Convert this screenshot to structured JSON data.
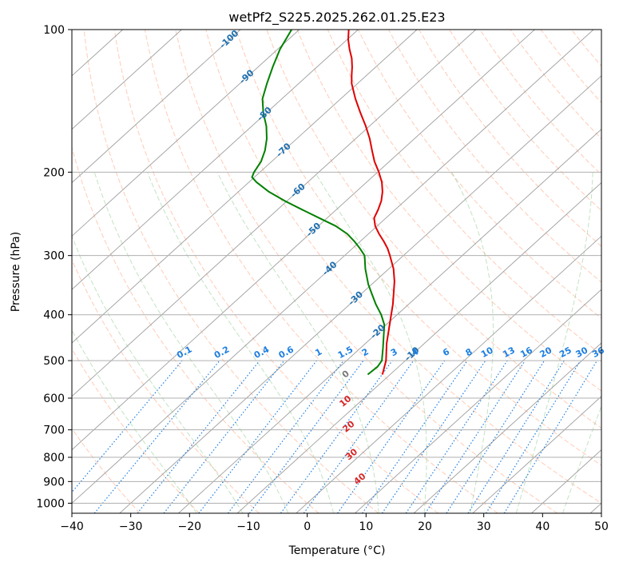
{
  "chart_data": {
    "type": "line",
    "title": "wetPf2_S225.2025.262.01.25.E23",
    "xlabel": "Temperature (°C)",
    "ylabel": "Pressure (hPa)",
    "xlim": [
      -40,
      50
    ],
    "ylim": [
      1050,
      100
    ],
    "x_ticks": [
      -40,
      -30,
      -20,
      -10,
      0,
      10,
      20,
      30,
      40,
      50
    ],
    "x_tick_labels": [
      "−40",
      "−30",
      "−20",
      "−10",
      "0",
      "10",
      "20",
      "30",
      "40",
      "50"
    ],
    "y_ticks": [
      1000,
      900,
      800,
      700,
      600,
      500,
      400,
      300,
      200,
      100
    ],
    "y_tick_labels": [
      "1000",
      "900",
      "800",
      "700",
      "600",
      "500",
      "400",
      "300",
      "200",
      "100"
    ],
    "grid": true,
    "colors": {
      "temperature": "#e00000",
      "dewpoint": "#008000",
      "isotherm": "#9e9e9e",
      "dry_adiabat": "#ffa07a",
      "moist_adiabat": "#8fcc8f",
      "mixing_ratio": "#1e7fe0",
      "isotherm_label": "#1f6fb0",
      "moist_label": "#d62728",
      "zero_label": "#777777",
      "background_arc": "#d2b48c"
    },
    "series": [
      {
        "name": "Temperature",
        "points": [
          {
            "p": 535,
            "t": -11.3
          },
          {
            "p": 500,
            "t": -13.3
          },
          {
            "p": 460,
            "t": -16.4
          },
          {
            "p": 420,
            "t": -19.4
          },
          {
            "p": 380,
            "t": -22.7
          },
          {
            "p": 340,
            "t": -26.7
          },
          {
            "p": 320,
            "t": -29.2
          },
          {
            "p": 300,
            "t": -32.3
          },
          {
            "p": 290,
            "t": -34.0
          },
          {
            "p": 280,
            "t": -36.0
          },
          {
            "p": 270,
            "t": -38.2
          },
          {
            "p": 260,
            "t": -40.3
          },
          {
            "p": 250,
            "t": -42.0
          },
          {
            "p": 240,
            "t": -42.9
          },
          {
            "p": 230,
            "t": -44.0
          },
          {
            "p": 220,
            "t": -45.5
          },
          {
            "p": 210,
            "t": -47.4
          },
          {
            "p": 200,
            "t": -49.8
          },
          {
            "p": 190,
            "t": -52.5
          },
          {
            "p": 180,
            "t": -55.0
          },
          {
            "p": 170,
            "t": -57.6
          },
          {
            "p": 160,
            "t": -60.6
          },
          {
            "p": 150,
            "t": -64.0
          },
          {
            "p": 140,
            "t": -67.5
          },
          {
            "p": 130,
            "t": -71.0
          },
          {
            "p": 125,
            "t": -72.5
          },
          {
            "p": 120,
            "t": -74.0
          },
          {
            "p": 115,
            "t": -75.7
          },
          {
            "p": 110,
            "t": -77.8
          },
          {
            "p": 105,
            "t": -79.8
          },
          {
            "p": 100,
            "t": -81.6
          }
        ]
      },
      {
        "name": "Dewpoint",
        "points": [
          {
            "p": 535,
            "t": -13.8
          },
          {
            "p": 515,
            "t": -13.6
          },
          {
            "p": 500,
            "t": -14.0
          },
          {
            "p": 470,
            "t": -16.2
          },
          {
            "p": 440,
            "t": -18.6
          },
          {
            "p": 420,
            "t": -20.3
          },
          {
            "p": 400,
            "t": -22.7
          },
          {
            "p": 380,
            "t": -25.6
          },
          {
            "p": 360,
            "t": -28.4
          },
          {
            "p": 345,
            "t": -30.6
          },
          {
            "p": 320,
            "t": -34.0
          },
          {
            "p": 300,
            "t": -36.6
          },
          {
            "p": 290,
            "t": -38.7
          },
          {
            "p": 280,
            "t": -41.0
          },
          {
            "p": 270,
            "t": -43.6
          },
          {
            "p": 260,
            "t": -47.0
          },
          {
            "p": 250,
            "t": -51.3
          },
          {
            "p": 240,
            "t": -55.8
          },
          {
            "p": 230,
            "t": -60.4
          },
          {
            "p": 220,
            "t": -64.8
          },
          {
            "p": 210,
            "t": -68.7
          },
          {
            "p": 205,
            "t": -70.4
          },
          {
            "p": 200,
            "t": -71.0
          },
          {
            "p": 190,
            "t": -71.8
          },
          {
            "p": 180,
            "t": -73.2
          },
          {
            "p": 170,
            "t": -75.1
          },
          {
            "p": 160,
            "t": -77.5
          },
          {
            "p": 150,
            "t": -80.5
          },
          {
            "p": 140,
            "t": -83.3
          },
          {
            "p": 130,
            "t": -85.4
          },
          {
            "p": 120,
            "t": -87.5
          },
          {
            "p": 110,
            "t": -89.6
          },
          {
            "p": 100,
            "t": -91.3
          }
        ]
      }
    ],
    "isotherm_labels": [
      "-100",
      "-90",
      "-80",
      "-70",
      "-60",
      "-50",
      "-40",
      "-30",
      "-20",
      "-10"
    ],
    "isotherm_label_values": [
      -100,
      -90,
      -80,
      -70,
      -60,
      -50,
      -40,
      -30,
      -20,
      -10
    ],
    "mixing_ratio_labels": [
      "0.1",
      "0.2",
      "0.4",
      "0.6",
      "1",
      "1.5",
      "2",
      "3",
      "4",
      "6",
      "8",
      "10",
      "13",
      "16",
      "20",
      "25",
      "30",
      "36"
    ],
    "mixing_ratio_values": [
      0.1,
      0.2,
      0.4,
      0.6,
      1,
      1.5,
      2,
      3,
      4,
      6,
      8,
      10,
      13,
      16,
      20,
      25,
      30,
      36
    ],
    "moist_adiabat_labels": [
      "0",
      "10",
      "20",
      "30",
      "40"
    ],
    "moist_adiabat_values": [
      0,
      10,
      20,
      30,
      40
    ]
  }
}
